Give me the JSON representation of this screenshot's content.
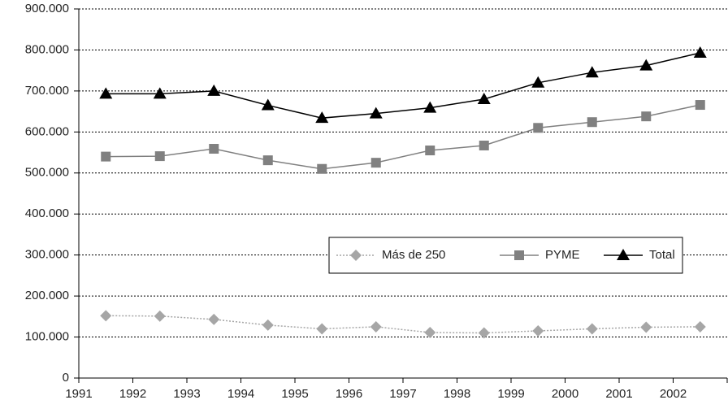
{
  "chart_data": {
    "type": "line",
    "categories": [
      "1991",
      "1992",
      "1993",
      "1994",
      "1995",
      "1996",
      "1997",
      "1998",
      "1999",
      "2000",
      "2001",
      "2002"
    ],
    "series": [
      {
        "name": "Más de 250",
        "color": "#a6a6a6",
        "marker": "diamond",
        "line_style": "dotted",
        "values": [
          152000,
          151000,
          143000,
          129000,
          120000,
          125000,
          111000,
          110000,
          115000,
          120000,
          124000,
          125000
        ]
      },
      {
        "name": "PYME",
        "color": "#808080",
        "marker": "square",
        "line_style": "solid",
        "values": [
          540000,
          541000,
          559000,
          531000,
          510000,
          525000,
          555000,
          567000,
          610000,
          624000,
          638000,
          666000
        ]
      },
      {
        "name": "Total",
        "color": "#000000",
        "marker": "triangle",
        "line_style": "solid",
        "values": [
          693000,
          693000,
          700000,
          665000,
          634000,
          645000,
          659000,
          680000,
          720000,
          745000,
          762000,
          793000
        ]
      }
    ],
    "ylim": [
      0,
      900000
    ],
    "yticks": [
      0,
      {
        "value": 100000,
        "label": "100.000"
      },
      {
        "value": 200000,
        "label": "200.000"
      },
      {
        "value": 300000,
        "label": "300.000"
      },
      {
        "value": 400000,
        "label": "400.000"
      },
      {
        "value": 500000,
        "label": "500.000"
      },
      {
        "value": 600000,
        "label": "600.000"
      },
      {
        "value": 700000,
        "label": "700.000"
      },
      {
        "value": 800000,
        "label": "800.000"
      },
      {
        "value": 900000,
        "label": "900.000"
      }
    ],
    "grid": true,
    "legend": "right"
  }
}
